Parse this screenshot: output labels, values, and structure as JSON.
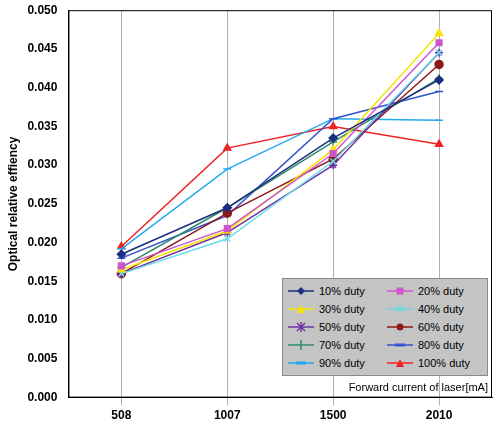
{
  "chart_data": {
    "type": "line",
    "y_label": "Optical relative effiency",
    "x_label": "Forward current of laser[mA]",
    "categories": [
      "508",
      "1007",
      "1500",
      "2010"
    ],
    "ylim": [
      0,
      0.05
    ],
    "yticks": [
      {
        "value": 0,
        "label": "0.000"
      },
      {
        "value": 0.005,
        "label": "0.005"
      },
      {
        "value": 0.01,
        "label": "0.010"
      },
      {
        "value": 0.015,
        "label": "0.015"
      },
      {
        "value": 0.02,
        "label": "0.020"
      },
      {
        "value": 0.025,
        "label": "0.025"
      },
      {
        "value": 0.03,
        "label": "0.030"
      },
      {
        "value": 0.035,
        "label": "0.035"
      },
      {
        "value": 0.04,
        "label": "0.040"
      },
      {
        "value": 0.045,
        "label": "0.045"
      },
      {
        "value": 0.05,
        "label": "0.050"
      }
    ],
    "grid": true,
    "legend": "lower right",
    "series": [
      {
        "name": "10% duty",
        "color": "#1c2f80",
        "marker": "diamond",
        "values": [
          0.0185,
          0.0245,
          0.0335,
          0.041
        ]
      },
      {
        "name": "20% duty",
        "color": "#cc55cc",
        "marker": "square",
        "values": [
          0.017,
          0.0218,
          0.0315,
          0.0458
        ]
      },
      {
        "name": "30% duty",
        "color": "#f5e400",
        "marker": "triangle",
        "values": [
          0.0165,
          0.0215,
          0.032,
          0.047
        ]
      },
      {
        "name": "40% duty",
        "color": "#66dde8",
        "marker": "cross",
        "values": [
          0.016,
          0.0205,
          0.0305,
          0.0445
        ]
      },
      {
        "name": "50% duty",
        "color": "#7030a0",
        "marker": "star",
        "values": [
          0.016,
          0.0213,
          0.03,
          0.0445
        ]
      },
      {
        "name": "60% duty",
        "color": "#8b1a1a",
        "marker": "circle",
        "values": [
          0.016,
          0.0238,
          0.0308,
          0.043
        ]
      },
      {
        "name": "70% duty",
        "color": "#2e8b6a",
        "marker": "plus",
        "values": [
          0.0168,
          0.0245,
          0.033,
          0.0412
        ]
      },
      {
        "name": "80% duty",
        "color": "#3355cc",
        "marker": "dash",
        "values": [
          0.018,
          0.0235,
          0.036,
          0.0395
        ]
      },
      {
        "name": "90% duty",
        "color": "#22aaee",
        "marker": "dash",
        "values": [
          0.0192,
          0.0295,
          0.036,
          0.0358
        ]
      },
      {
        "name": "100% duty",
        "color": "#ee2222",
        "marker": "triangle",
        "values": [
          0.0195,
          0.0322,
          0.035,
          0.0327
        ]
      }
    ]
  }
}
